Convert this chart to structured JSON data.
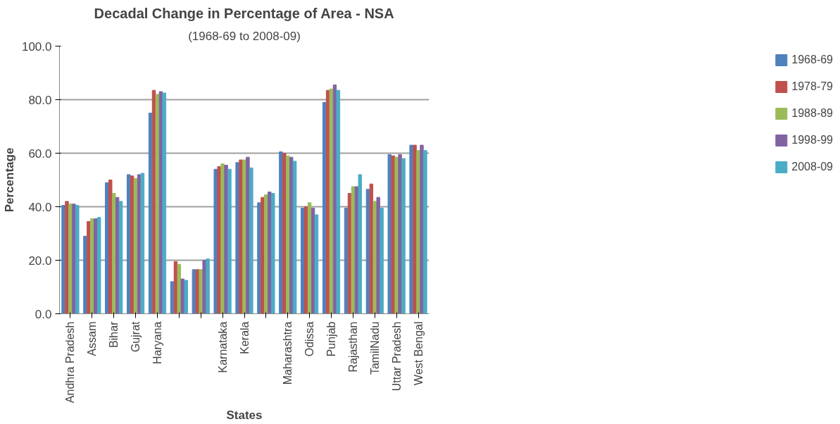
{
  "chart_data": {
    "type": "bar",
    "title": "Decadal Change in Percentage of Area - NSA",
    "subtitle": "(1968-69 to 2008-09)",
    "xlabel": "States",
    "ylabel": "Percentage",
    "categories": [
      "Andhra Pradesh",
      "Assam",
      "Bihar",
      "Gujrat",
      "Haryana",
      null,
      null,
      "Karnataka",
      "Kerala",
      null,
      "Maharashtra",
      "Odissa",
      "Punjab",
      "Rajasthan",
      "TamilNadu",
      "Uttar Pradesh",
      "West Bengal"
    ],
    "series": [
      {
        "name": "1968-69",
        "color": "#4f81bd",
        "values": [
          40.5,
          29,
          49,
          52,
          75,
          12,
          16.5,
          54,
          56.5,
          41.5,
          60.5,
          39.5,
          79,
          39.5,
          46.5,
          59.5,
          63
        ]
      },
      {
        "name": "1978-79",
        "color": "#c0504d",
        "values": [
          42,
          34.5,
          50,
          51.5,
          83.5,
          19.5,
          16.5,
          55,
          57.5,
          43.5,
          60,
          40,
          83.5,
          45,
          48.5,
          59,
          63
        ]
      },
      {
        "name": "1988-89",
        "color": "#9bbb59",
        "values": [
          41,
          35.5,
          45,
          50.5,
          82,
          18.5,
          16.5,
          56,
          57.5,
          44.5,
          59,
          41.5,
          84,
          47.5,
          42,
          58.5,
          61
        ]
      },
      {
        "name": "1998-99",
        "color": "#8064a2",
        "values": [
          41,
          35.5,
          43.5,
          52,
          83,
          13,
          20,
          55.5,
          58.5,
          45.5,
          58.5,
          39.5,
          85.5,
          47.5,
          43.5,
          59.5,
          63
        ]
      },
      {
        "name": "2008-09",
        "color": "#4bacc6",
        "values": [
          40.5,
          36,
          42,
          52.5,
          82.5,
          12.5,
          20.5,
          54,
          54.5,
          45,
          57,
          37,
          83.5,
          52,
          39.5,
          58,
          61
        ]
      }
    ],
    "ylim": [
      0,
      100
    ],
    "yticks": [
      {
        "value": 0,
        "label": "0.0"
      },
      {
        "value": 20,
        "label": "20.0"
      },
      {
        "value": 40,
        "label": "40.0"
      },
      {
        "value": 60,
        "label": "60.0"
      },
      {
        "value": 80,
        "label": "80.0"
      },
      {
        "value": 100,
        "label": "100.0"
      }
    ],
    "grid": "y",
    "legend": "right"
  }
}
